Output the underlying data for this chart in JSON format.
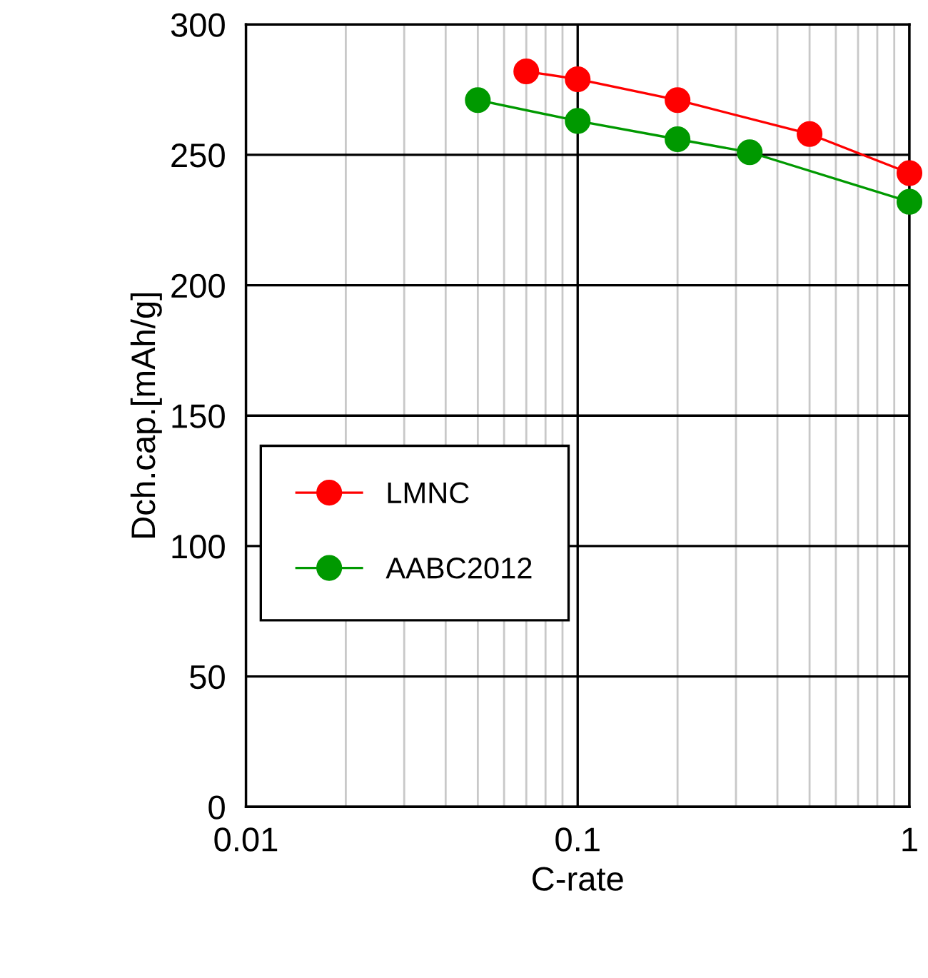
{
  "chart_data": {
    "type": "line",
    "xlabel": "C-rate",
    "ylabel": "Dch.cap.[mAh/g]",
    "log": "x",
    "xlim": [
      0.01,
      1
    ],
    "xticks": [
      0.01,
      0.1,
      1
    ],
    "ylim": [
      0,
      300
    ],
    "yticks": [
      0,
      50,
      100,
      150,
      200,
      250,
      300
    ],
    "grid": true,
    "legend": "center left",
    "marker": "circle",
    "line_style": "solid",
    "series": [
      {
        "name": "LMNC",
        "color": "#ff0000",
        "x": [
          0.07,
          0.1,
          0.2,
          0.5,
          1
        ],
        "values": [
          282,
          279,
          271,
          258,
          243
        ]
      },
      {
        "name": "AABC2012",
        "color": "#009900",
        "x": [
          0.05,
          0.1,
          0.2,
          0.33,
          1
        ],
        "values": [
          271,
          263,
          256,
          251,
          232
        ]
      }
    ]
  }
}
